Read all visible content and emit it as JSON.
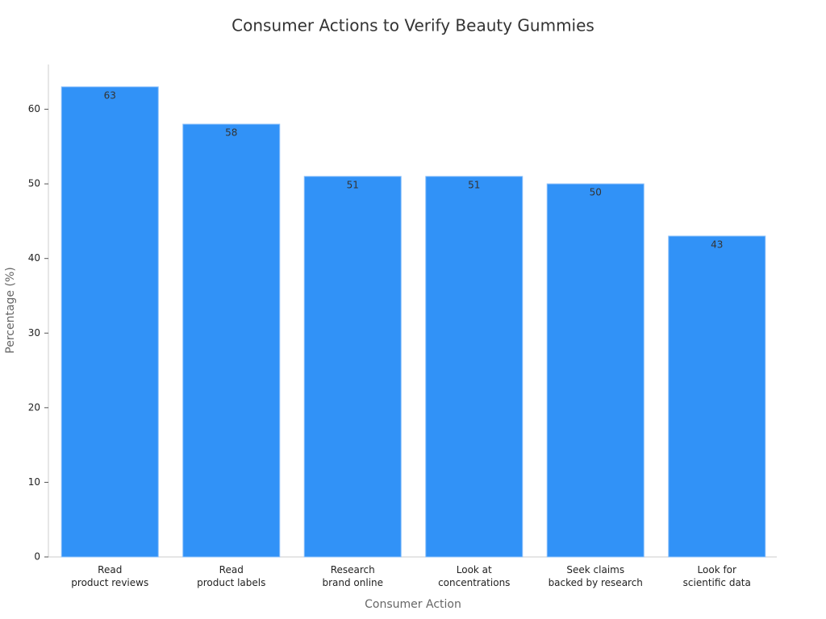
{
  "chart_data": {
    "type": "bar",
    "title": "Consumer Actions to Verify Beauty Gummies",
    "x_label": "Consumer Action",
    "y_label": "Percentage (%)",
    "categories": [
      "Read\nproduct reviews",
      "Read\nproduct labels",
      "Research\nbrand online",
      "Look at\nconcentrations",
      "Seek claims\nbacked by research",
      "Look for\nscientific data"
    ],
    "values": [
      63,
      58,
      51,
      51,
      50,
      43
    ],
    "color": "#3192f7",
    "ylim": [
      0,
      66
    ],
    "yticks": [
      0,
      10,
      20,
      30,
      40,
      50,
      60
    ],
    "grid": false
  }
}
